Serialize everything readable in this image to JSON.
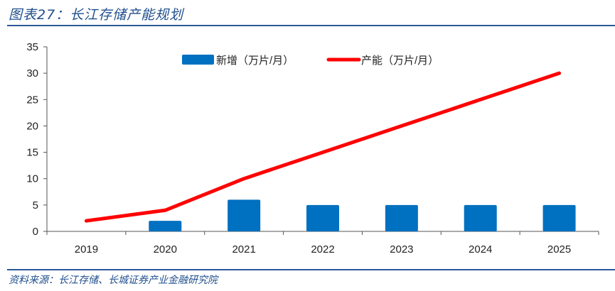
{
  "title": "图表27：长江存储产能规划",
  "source": "资料来源：长江存储、长城证券产业金融研究院",
  "chart_data": {
    "type": "bar+line",
    "categories": [
      "2019",
      "2020",
      "2021",
      "2022",
      "2023",
      "2024",
      "2025"
    ],
    "series": [
      {
        "name": "新增（万片/月）",
        "type": "bar",
        "color": "#0070c0",
        "values": [
          null,
          2,
          6,
          5,
          5,
          5,
          5
        ]
      },
      {
        "name": "产能（万片/月）",
        "type": "line",
        "color": "#ff0000",
        "values": [
          2,
          4,
          10,
          15,
          20,
          25,
          30
        ]
      }
    ],
    "ylim": [
      0,
      35
    ],
    "yticks": [
      0,
      5,
      10,
      15,
      20,
      25,
      30,
      35
    ],
    "grid": false,
    "legend": "top-center"
  }
}
